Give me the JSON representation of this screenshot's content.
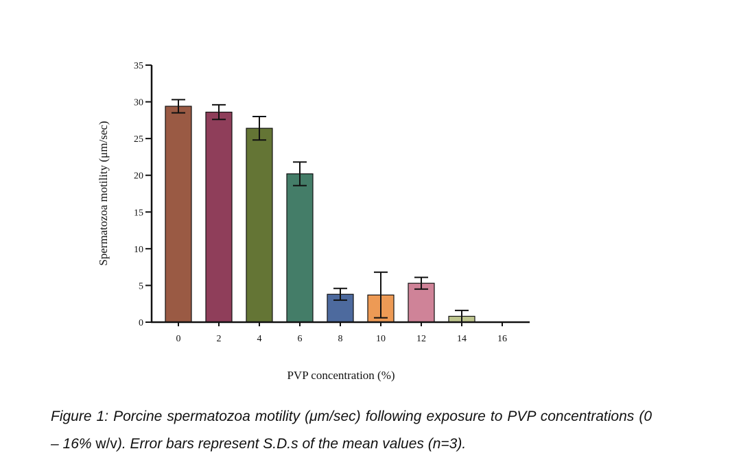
{
  "chart_data": {
    "type": "bar",
    "categories": [
      "0",
      "2",
      "4",
      "6",
      "8",
      "10",
      "12",
      "14",
      "16"
    ],
    "values": [
      29.4,
      28.6,
      26.4,
      20.2,
      3.8,
      3.7,
      5.3,
      0.8,
      0
    ],
    "errors": [
      0.9,
      1.0,
      1.6,
      1.6,
      0.8,
      3.1,
      0.8,
      0.8,
      0
    ],
    "colors": [
      "#9a5a44",
      "#8f3e5a",
      "#647535",
      "#447d68",
      "#4d6a9e",
      "#ed9a55",
      "#cf8398",
      "#bec68e",
      "#cccccc"
    ],
    "xlabel": "PVP concentration (%)",
    "ylabel": "Spermatozoa motility (μm/sec)",
    "ylim": [
      0,
      35
    ],
    "yticks": [
      0,
      5,
      10,
      15,
      20,
      25,
      30,
      35
    ],
    "grid": false
  },
  "caption": {
    "italic_part_1": "Figure 1: Porcine spermatozoa motility (μm/sec) following exposure to PVP concentrations (0 – 16% ",
    "upright_part": "w/v",
    "italic_part_2": "). Error bars represent S.D.s of the mean values (n=3)."
  }
}
